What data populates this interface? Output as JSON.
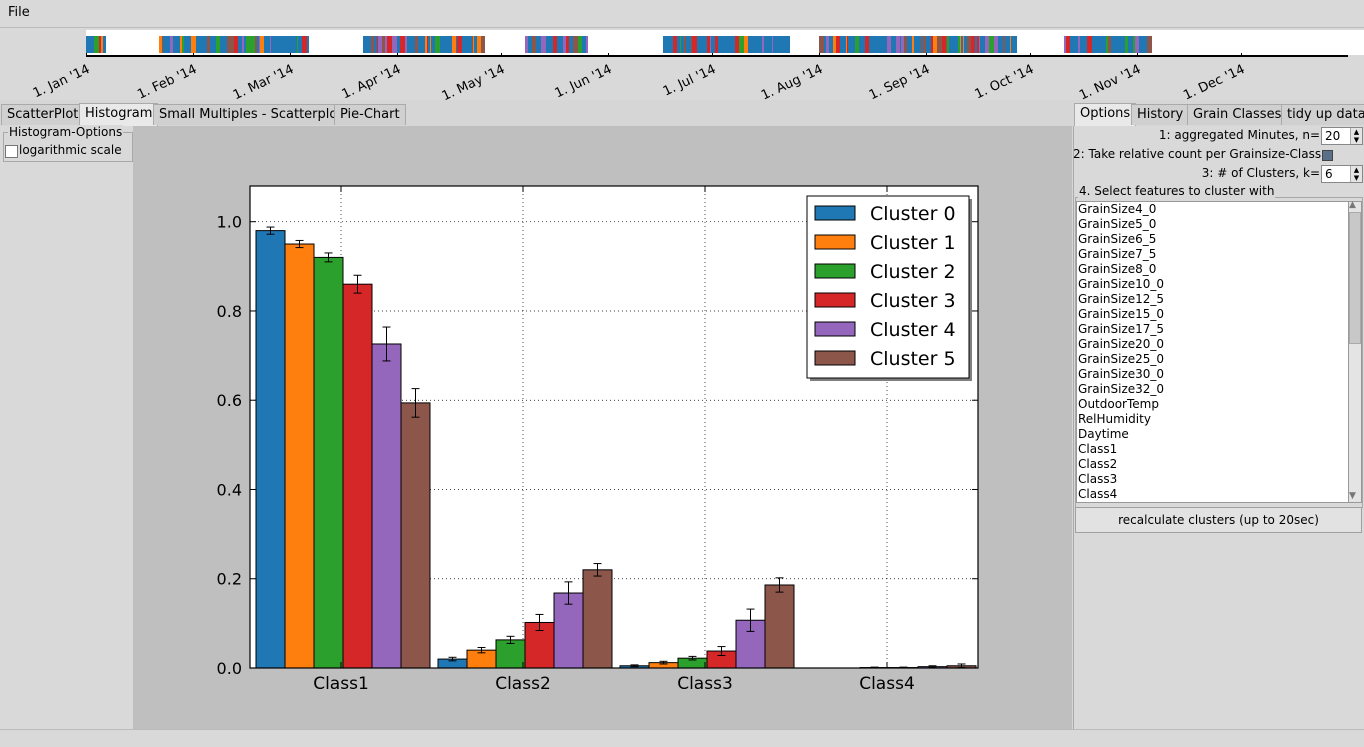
{
  "menu": {
    "file_label": "File"
  },
  "timeline": {
    "month_labels": [
      "1. Jan '14",
      "1. Feb '14",
      "1. Mar '14",
      "1. Apr '14",
      "1. May '14",
      "1. Jun '14",
      "1. Jul '14",
      "1. Aug '14",
      "1. Sep '14",
      "1. Oct '14",
      "1. Nov '14",
      "1. Dec '14"
    ],
    "segment_colors": [
      "#1f77b4",
      "#ff7f0e",
      "#2ca02c",
      "#d62728",
      "#9467bd",
      "#8c564b"
    ]
  },
  "left_tabs": [
    "ScatterPlot",
    "Histogram",
    "Small Multiples - Scatterplot",
    "Pie-Chart"
  ],
  "left_active_tab": "Histogram",
  "histogram_options": {
    "group_title": "Histogram-Options",
    "log_scale_label": "logarithmic scale",
    "log_scale_checked": false
  },
  "right_tabs": [
    "Options",
    "History",
    "Grain Classes",
    "tidy up data"
  ],
  "right_active_tab": "Options",
  "options": {
    "aggregated_label": "1: aggregated Minutes, n=",
    "aggregated_value": "20",
    "relative_label": "2: Take relative count per Grainsize-Class:",
    "relative_checked": true,
    "clusters_label": "3: # of Clusters, k=",
    "clusters_value": "6",
    "features_title": "4. Select features to cluster with",
    "features": [
      "GrainSize4_0",
      "GrainSize5_0",
      "GrainSize6_5",
      "GrainSize7_5",
      "GrainSize8_0",
      "GrainSize10_0",
      "GrainSize12_5",
      "GrainSize15_0",
      "GrainSize17_5",
      "GrainSize20_0",
      "GrainSize25_0",
      "GrainSize30_0",
      "GrainSize32_0",
      "OutdoorTemp",
      "RelHumidity",
      "Daytime",
      "Class1",
      "Class2",
      "Class3",
      "Class4"
    ],
    "recalc_label": "recalculate clusters (up to 20sec)"
  },
  "chart_data": {
    "type": "bar",
    "categories": [
      "Class1",
      "Class2",
      "Class3",
      "Class4"
    ],
    "series": [
      {
        "name": "Cluster 0",
        "color": "#1f77b4",
        "values": [
          0.98,
          0.02,
          0.005,
          0.0
        ],
        "errors": [
          0.008,
          0.004,
          0.002,
          0.0
        ]
      },
      {
        "name": "Cluster 1",
        "color": "#ff7f0e",
        "values": [
          0.95,
          0.04,
          0.012,
          0.0
        ],
        "errors": [
          0.008,
          0.006,
          0.003,
          0.0
        ]
      },
      {
        "name": "Cluster 2",
        "color": "#2ca02c",
        "values": [
          0.92,
          0.063,
          0.022,
          0.001
        ],
        "errors": [
          0.01,
          0.008,
          0.004,
          0.001
        ]
      },
      {
        "name": "Cluster 3",
        "color": "#d62728",
        "values": [
          0.86,
          0.102,
          0.038,
          0.001
        ],
        "errors": [
          0.02,
          0.018,
          0.01,
          0.001
        ]
      },
      {
        "name": "Cluster 4",
        "color": "#9467bd",
        "values": [
          0.726,
          0.168,
          0.107,
          0.003
        ],
        "errors": [
          0.038,
          0.025,
          0.025,
          0.002
        ]
      },
      {
        "name": "Cluster 5",
        "color": "#8c564b",
        "values": [
          0.594,
          0.22,
          0.186,
          0.005
        ],
        "errors": [
          0.032,
          0.014,
          0.016,
          0.004
        ]
      }
    ],
    "ylim": [
      0,
      1.08
    ],
    "yticks": [
      "0.0",
      "0.2",
      "0.4",
      "0.6",
      "0.8",
      "1.0"
    ],
    "grid": true,
    "legend_position": "top-right",
    "error_bars": true
  }
}
